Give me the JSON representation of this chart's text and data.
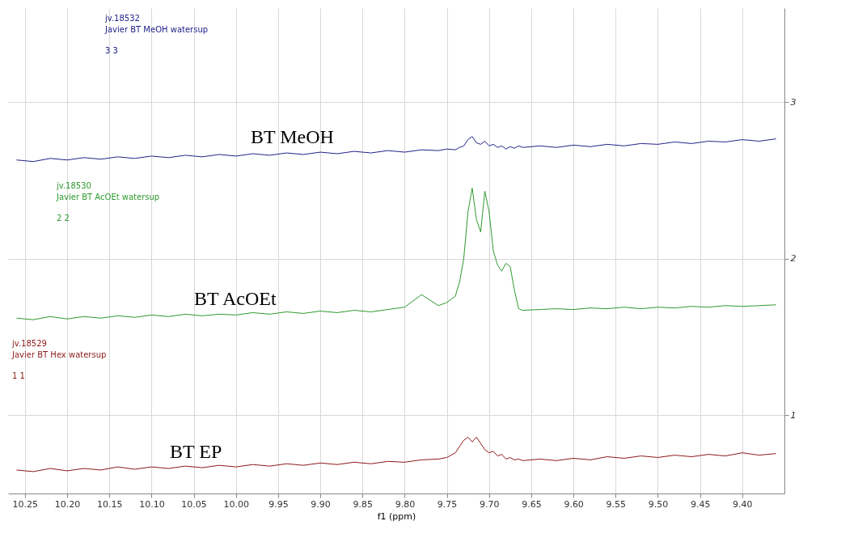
{
  "chart_data": {
    "type": "line",
    "xlabel": "f1 (ppm)",
    "x": [
      10.26,
      10.24,
      10.22,
      10.2,
      10.18,
      10.16,
      10.14,
      10.12,
      10.1,
      10.08,
      10.06,
      10.04,
      10.02,
      10.0,
      9.98,
      9.96,
      9.94,
      9.92,
      9.9,
      9.88,
      9.86,
      9.84,
      9.82,
      9.8,
      9.78,
      9.76,
      9.75,
      9.74,
      9.735,
      9.73,
      9.725,
      9.72,
      9.715,
      9.71,
      9.705,
      9.7,
      9.695,
      9.69,
      9.685,
      9.68,
      9.675,
      9.67,
      9.665,
      9.66,
      9.64,
      9.62,
      9.6,
      9.58,
      9.56,
      9.54,
      9.52,
      9.5,
      9.48,
      9.46,
      9.44,
      9.42,
      9.4,
      9.38,
      9.36
    ],
    "series": [
      {
        "name": "BT EP",
        "color": "#8b1a1a",
        "values": [
          0.65,
          0.64,
          0.66,
          0.645,
          0.66,
          0.65,
          0.67,
          0.655,
          0.67,
          0.66,
          0.675,
          0.665,
          0.68,
          0.67,
          0.685,
          0.675,
          0.69,
          0.68,
          0.695,
          0.685,
          0.7,
          0.69,
          0.705,
          0.7,
          0.715,
          0.72,
          0.73,
          0.76,
          0.8,
          0.84,
          0.86,
          0.83,
          0.86,
          0.82,
          0.78,
          0.76,
          0.77,
          0.74,
          0.75,
          0.72,
          0.73,
          0.715,
          0.72,
          0.71,
          0.72,
          0.71,
          0.725,
          0.715,
          0.735,
          0.725,
          0.74,
          0.73,
          0.745,
          0.735,
          0.75,
          0.74,
          0.76,
          0.745,
          0.755
        ]
      },
      {
        "name": "BT AcOEt",
        "color": "#2e9a2e",
        "values": [
          1.62,
          1.61,
          1.63,
          1.615,
          1.63,
          1.62,
          1.635,
          1.625,
          1.64,
          1.63,
          1.645,
          1.635,
          1.645,
          1.64,
          1.655,
          1.645,
          1.66,
          1.65,
          1.665,
          1.655,
          1.67,
          1.66,
          1.675,
          1.69,
          1.77,
          1.7,
          1.72,
          1.76,
          1.85,
          2.0,
          2.3,
          2.45,
          2.25,
          2.17,
          2.43,
          2.3,
          2.05,
          1.96,
          1.92,
          1.97,
          1.95,
          1.8,
          1.68,
          1.67,
          1.675,
          1.68,
          1.675,
          1.685,
          1.68,
          1.69,
          1.68,
          1.69,
          1.685,
          1.695,
          1.69,
          1.7,
          1.695,
          1.7,
          1.705
        ]
      },
      {
        "name": "BT MeOH",
        "color": "#22228b",
        "values": [
          2.63,
          2.62,
          2.64,
          2.63,
          2.645,
          2.635,
          2.65,
          2.64,
          2.655,
          2.645,
          2.66,
          2.65,
          2.665,
          2.655,
          2.67,
          2.66,
          2.675,
          2.665,
          2.68,
          2.67,
          2.685,
          2.675,
          2.69,
          2.68,
          2.695,
          2.69,
          2.7,
          2.695,
          2.71,
          2.72,
          2.76,
          2.78,
          2.74,
          2.73,
          2.75,
          2.72,
          2.73,
          2.71,
          2.72,
          2.7,
          2.715,
          2.705,
          2.72,
          2.71,
          2.72,
          2.71,
          2.725,
          2.715,
          2.73,
          2.72,
          2.735,
          2.73,
          2.745,
          2.735,
          2.75,
          2.745,
          2.76,
          2.75,
          2.765
        ]
      }
    ],
    "xlim": [
      10.27,
      9.35
    ],
    "xticks": [
      10.25,
      {
        "value": 10.2,
        "label": "10.20"
      },
      10.15,
      {
        "value": 10.1,
        "label": "10.10"
      },
      10.05,
      {
        "value": 10,
        "label": "10.00"
      },
      9.95,
      {
        "value": 9.9,
        "label": "9.90"
      },
      9.85,
      {
        "value": 9.8,
        "label": "9.80"
      },
      9.75,
      {
        "value": 9.7,
        "label": "9.70"
      },
      9.65,
      {
        "value": 9.6,
        "label": "9.60"
      },
      9.55,
      {
        "value": 9.5,
        "label": "9.50"
      },
      9.45,
      {
        "value": 9.4,
        "label": "9.40"
      }
    ],
    "ylim": [
      0.5,
      3.6
    ],
    "yticks": [
      1,
      2,
      3
    ],
    "annotations": [
      "jv.18532",
      "Javier BT MeOH watersup",
      "3 3",
      "jv.18530",
      "Javier BT AcOEt watersup",
      "2 2",
      "jv.18529",
      "Javier BT Hex watersup",
      "1 1"
    ],
    "grid": true,
    "marker": "none",
    "line_style": "solid"
  }
}
